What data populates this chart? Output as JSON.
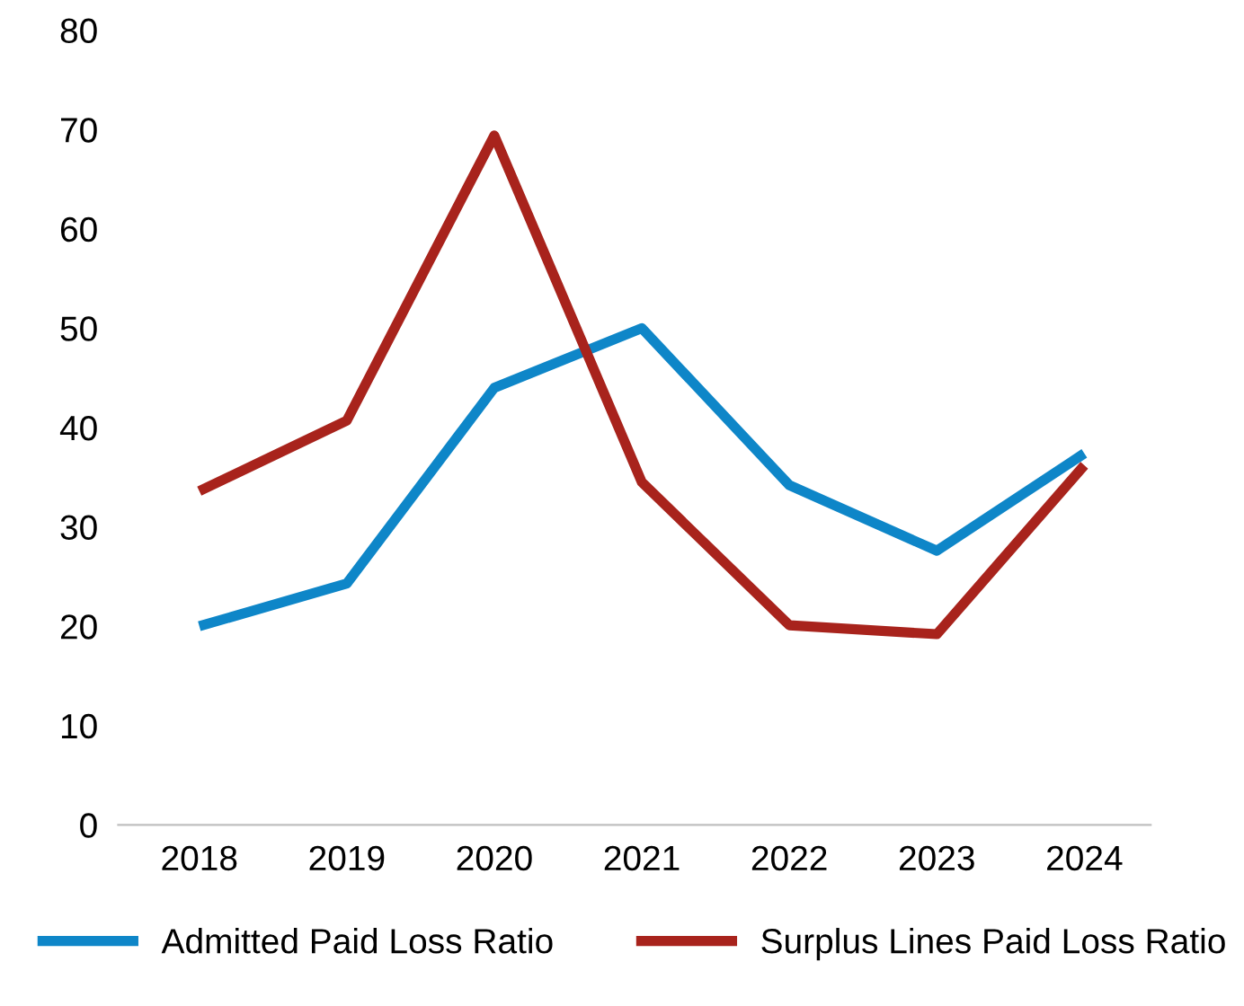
{
  "chart_data": {
    "type": "line",
    "categories": [
      "2018",
      "2019",
      "2020",
      "2021",
      "2022",
      "2023",
      "2024"
    ],
    "series": [
      {
        "name": "Admitted Paid Loss Ratio",
        "color": "#0e86c8",
        "values": [
          20,
          24.3,
          44,
          50,
          34.2,
          27.6,
          37.4
        ]
      },
      {
        "name": "Surplus Lines Paid Loss Ratio",
        "color": "#a8231c",
        "values": [
          33.6,
          40.7,
          69.4,
          34.5,
          20.1,
          19.2,
          36.2
        ]
      }
    ],
    "ylim": [
      0,
      80
    ],
    "yticks": [
      0,
      10,
      20,
      30,
      40,
      50,
      60,
      70,
      80
    ],
    "grid": false,
    "legend": "bottom",
    "marker": "none",
    "line_style": "solid"
  }
}
